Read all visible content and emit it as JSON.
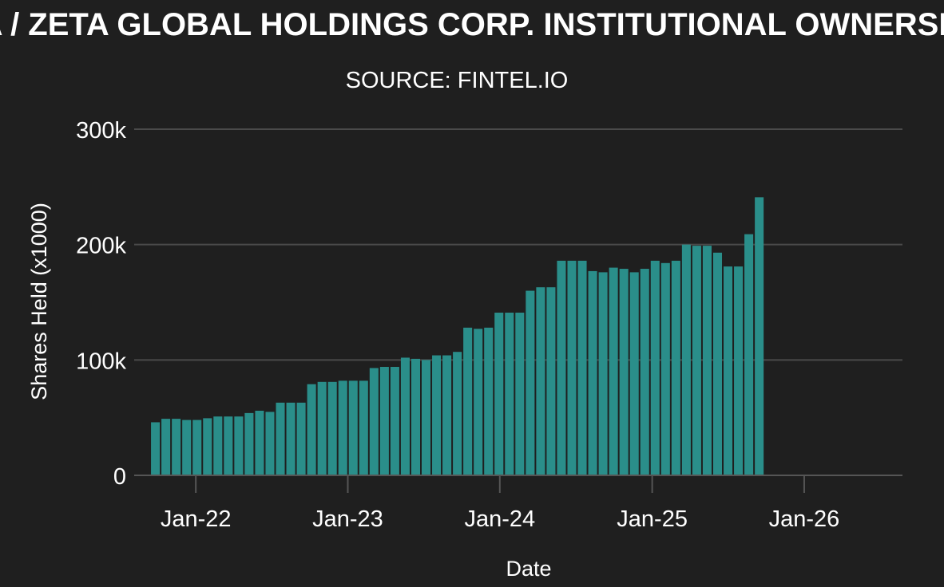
{
  "chart_data": {
    "type": "bar",
    "title": "ZETA / ZETA GLOBAL HOLDINGS CORP. INSTITUTIONAL OWNERSHIP",
    "subtitle": "SOURCE: FINTEL.IO",
    "xlabel": "Date",
    "ylabel": "Shares Held (x1000)",
    "ylim": [
      0,
      300000
    ],
    "yticks": [
      {
        "value": 0,
        "label": "0"
      },
      {
        "value": 100000,
        "label": "100k"
      },
      {
        "value": 200000,
        "label": "200k"
      },
      {
        "value": 300000,
        "label": "300k"
      }
    ],
    "xlim": [
      "2021-08-06",
      "2026-08-25"
    ],
    "xticks": [
      {
        "date": "2022-01-01",
        "label": "Jan-22"
      },
      {
        "date": "2023-01-01",
        "label": "Jan-23"
      },
      {
        "date": "2024-01-01",
        "label": "Jan-24"
      },
      {
        "date": "2025-01-01",
        "label": "Jan-25"
      },
      {
        "date": "2026-01-01",
        "label": "Jan-26"
      }
    ],
    "grid": true,
    "bar_color": "#2a8e8a",
    "dates": [
      "2021-09-01",
      "2021-09-26",
      "2021-10-21",
      "2021-11-15",
      "2021-12-10",
      "2022-01-04",
      "2022-01-29",
      "2022-02-23",
      "2022-03-20",
      "2022-04-14",
      "2022-05-09",
      "2022-06-03",
      "2022-06-28",
      "2022-07-23",
      "2022-08-17",
      "2022-09-11",
      "2022-10-06",
      "2022-10-31",
      "2022-11-25",
      "2022-12-20",
      "2023-01-14",
      "2023-02-08",
      "2023-03-05",
      "2023-03-30",
      "2023-04-24",
      "2023-05-19",
      "2023-06-13",
      "2023-07-08",
      "2023-08-02",
      "2023-08-27",
      "2023-09-21",
      "2023-10-16",
      "2023-11-10",
      "2023-12-05",
      "2023-12-30",
      "2024-01-24",
      "2024-02-18",
      "2024-03-14",
      "2024-04-08",
      "2024-05-03",
      "2024-05-28",
      "2024-06-22",
      "2024-07-17",
      "2024-08-11",
      "2024-09-05",
      "2024-09-30",
      "2024-10-25",
      "2024-11-19",
      "2024-12-14",
      "2025-01-08",
      "2025-02-02",
      "2025-02-27",
      "2025-03-24",
      "2025-04-18",
      "2025-05-13",
      "2025-06-07",
      "2025-07-02",
      "2025-07-27",
      "2025-08-21",
      "2025-09-15",
      "2025-10-10",
      "2025-11-04",
      "2025-11-29",
      "2025-12-24",
      "2026-01-18",
      "2026-02-12",
      "2026-03-09",
      "2026-04-03",
      "2026-04-28",
      "2026-05-23",
      "2026-06-17",
      "2026-07-12",
      "2026-08-06"
    ],
    "values": [
      null,
      46000,
      49000,
      49000,
      48000,
      48000,
      49500,
      51000,
      51000,
      51000,
      54000,
      56000,
      55000,
      63000,
      63000,
      63000,
      79000,
      81000,
      81000,
      82000,
      82000,
      82000,
      93000,
      94000,
      94000,
      102000,
      101000,
      100000,
      104000,
      104000,
      107000,
      128000,
      127000,
      128000,
      141000,
      141000,
      141000,
      160000,
      163000,
      163000,
      186000,
      186000,
      186000,
      177000,
      176000,
      180000,
      179000,
      176000,
      179000,
      186000,
      184000,
      186000,
      200000,
      199000,
      199000,
      193000,
      181000,
      181000,
      209000,
      241000,
      null,
      null,
      null,
      null,
      null,
      null,
      null,
      null,
      null,
      null,
      null,
      null,
      null
    ]
  }
}
